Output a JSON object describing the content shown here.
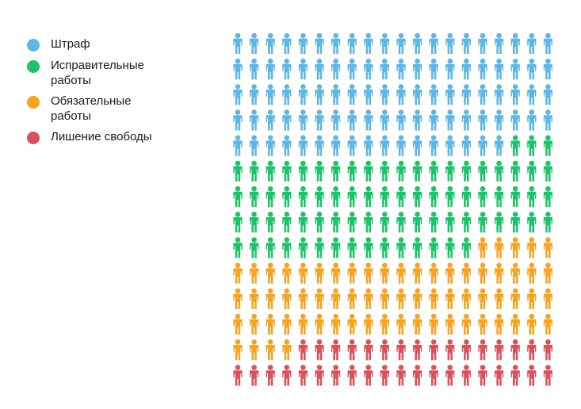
{
  "chart_data": {
    "type": "pictogram",
    "unit": "person icon",
    "grid": {
      "columns": 20,
      "rows": 14
    },
    "series": [
      {
        "name": "Штраф",
        "count": 97,
        "color": "#5FB6E3"
      },
      {
        "name": "Исправительные работы",
        "count": 78,
        "color": "#1DC36A"
      },
      {
        "name": "Обязательные работы",
        "count": 69,
        "color": "#F4A322"
      },
      {
        "name": "Лишение свободы",
        "count": 36,
        "color": "#D9525A"
      }
    ]
  },
  "legend": {
    "items": [
      {
        "label": "Штраф",
        "color": "#5FB6E3"
      },
      {
        "label": "Исправительные работы",
        "color": "#1DC36A"
      },
      {
        "label": "Обязательные работы",
        "color": "#F4A322"
      },
      {
        "label": "Лишение свободы",
        "color": "#D9525A"
      }
    ]
  }
}
